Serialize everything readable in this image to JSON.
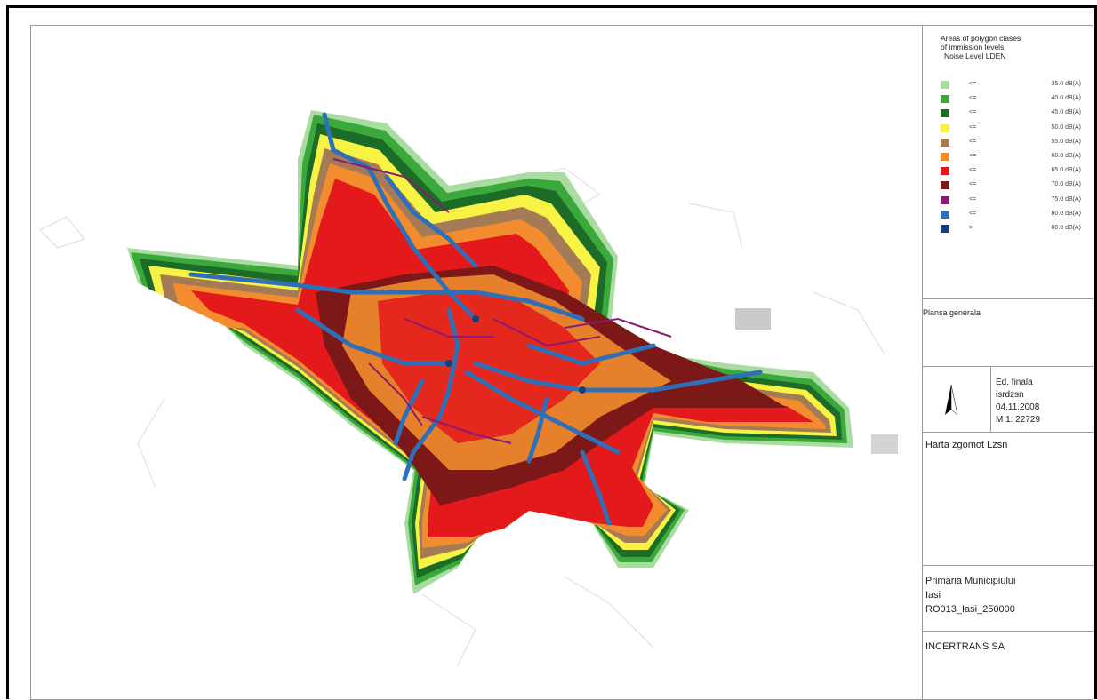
{
  "legend": {
    "title_lines": [
      "Areas of polygon clases",
      "of immission levels",
      "Noise Level LDEN"
    ],
    "classes": [
      {
        "op": "<=",
        "value": "35.0 dB(A)",
        "color": "#a9dca0"
      },
      {
        "op": "<=",
        "value": "40.0 dB(A)",
        "color": "#3aa83a"
      },
      {
        "op": "<=",
        "value": "45.0 dB(A)",
        "color": "#1c6b26"
      },
      {
        "op": "<=",
        "value": "50.0 dB(A)",
        "color": "#f7f244"
      },
      {
        "op": "<=",
        "value": "55.0 dB(A)",
        "color": "#a57b56"
      },
      {
        "op": "<=",
        "value": "60.0 dB(A)",
        "color": "#f28c2e"
      },
      {
        "op": "<=",
        "value": "65.0 dB(A)",
        "color": "#e3191b"
      },
      {
        "op": "<=",
        "value": "70.0 dB(A)",
        "color": "#7d1818"
      },
      {
        "op": "<=",
        "value": "75.0 dB(A)",
        "color": "#8a1a73"
      },
      {
        "op": "<=",
        "value": "80.0 dB(A)",
        "color": "#2f6fb8"
      },
      {
        "op": ">",
        "value": "80.0 dB(A)",
        "color": "#163f7a"
      }
    ]
  },
  "plan_label": "Plansa generala",
  "edition": {
    "north_icon": "north-arrow-icon",
    "lines": [
      "Ed. finala",
      "isrdzsn",
      "04.11.2008",
      "M 1:  22729"
    ]
  },
  "map_name": "Harta zgomot Lzsn",
  "authority": {
    "lines": [
      "Primaria Municipiului",
      "Iasi",
      "RO013_Iasi_250000"
    ]
  },
  "company": "INCERTRANS SA"
}
